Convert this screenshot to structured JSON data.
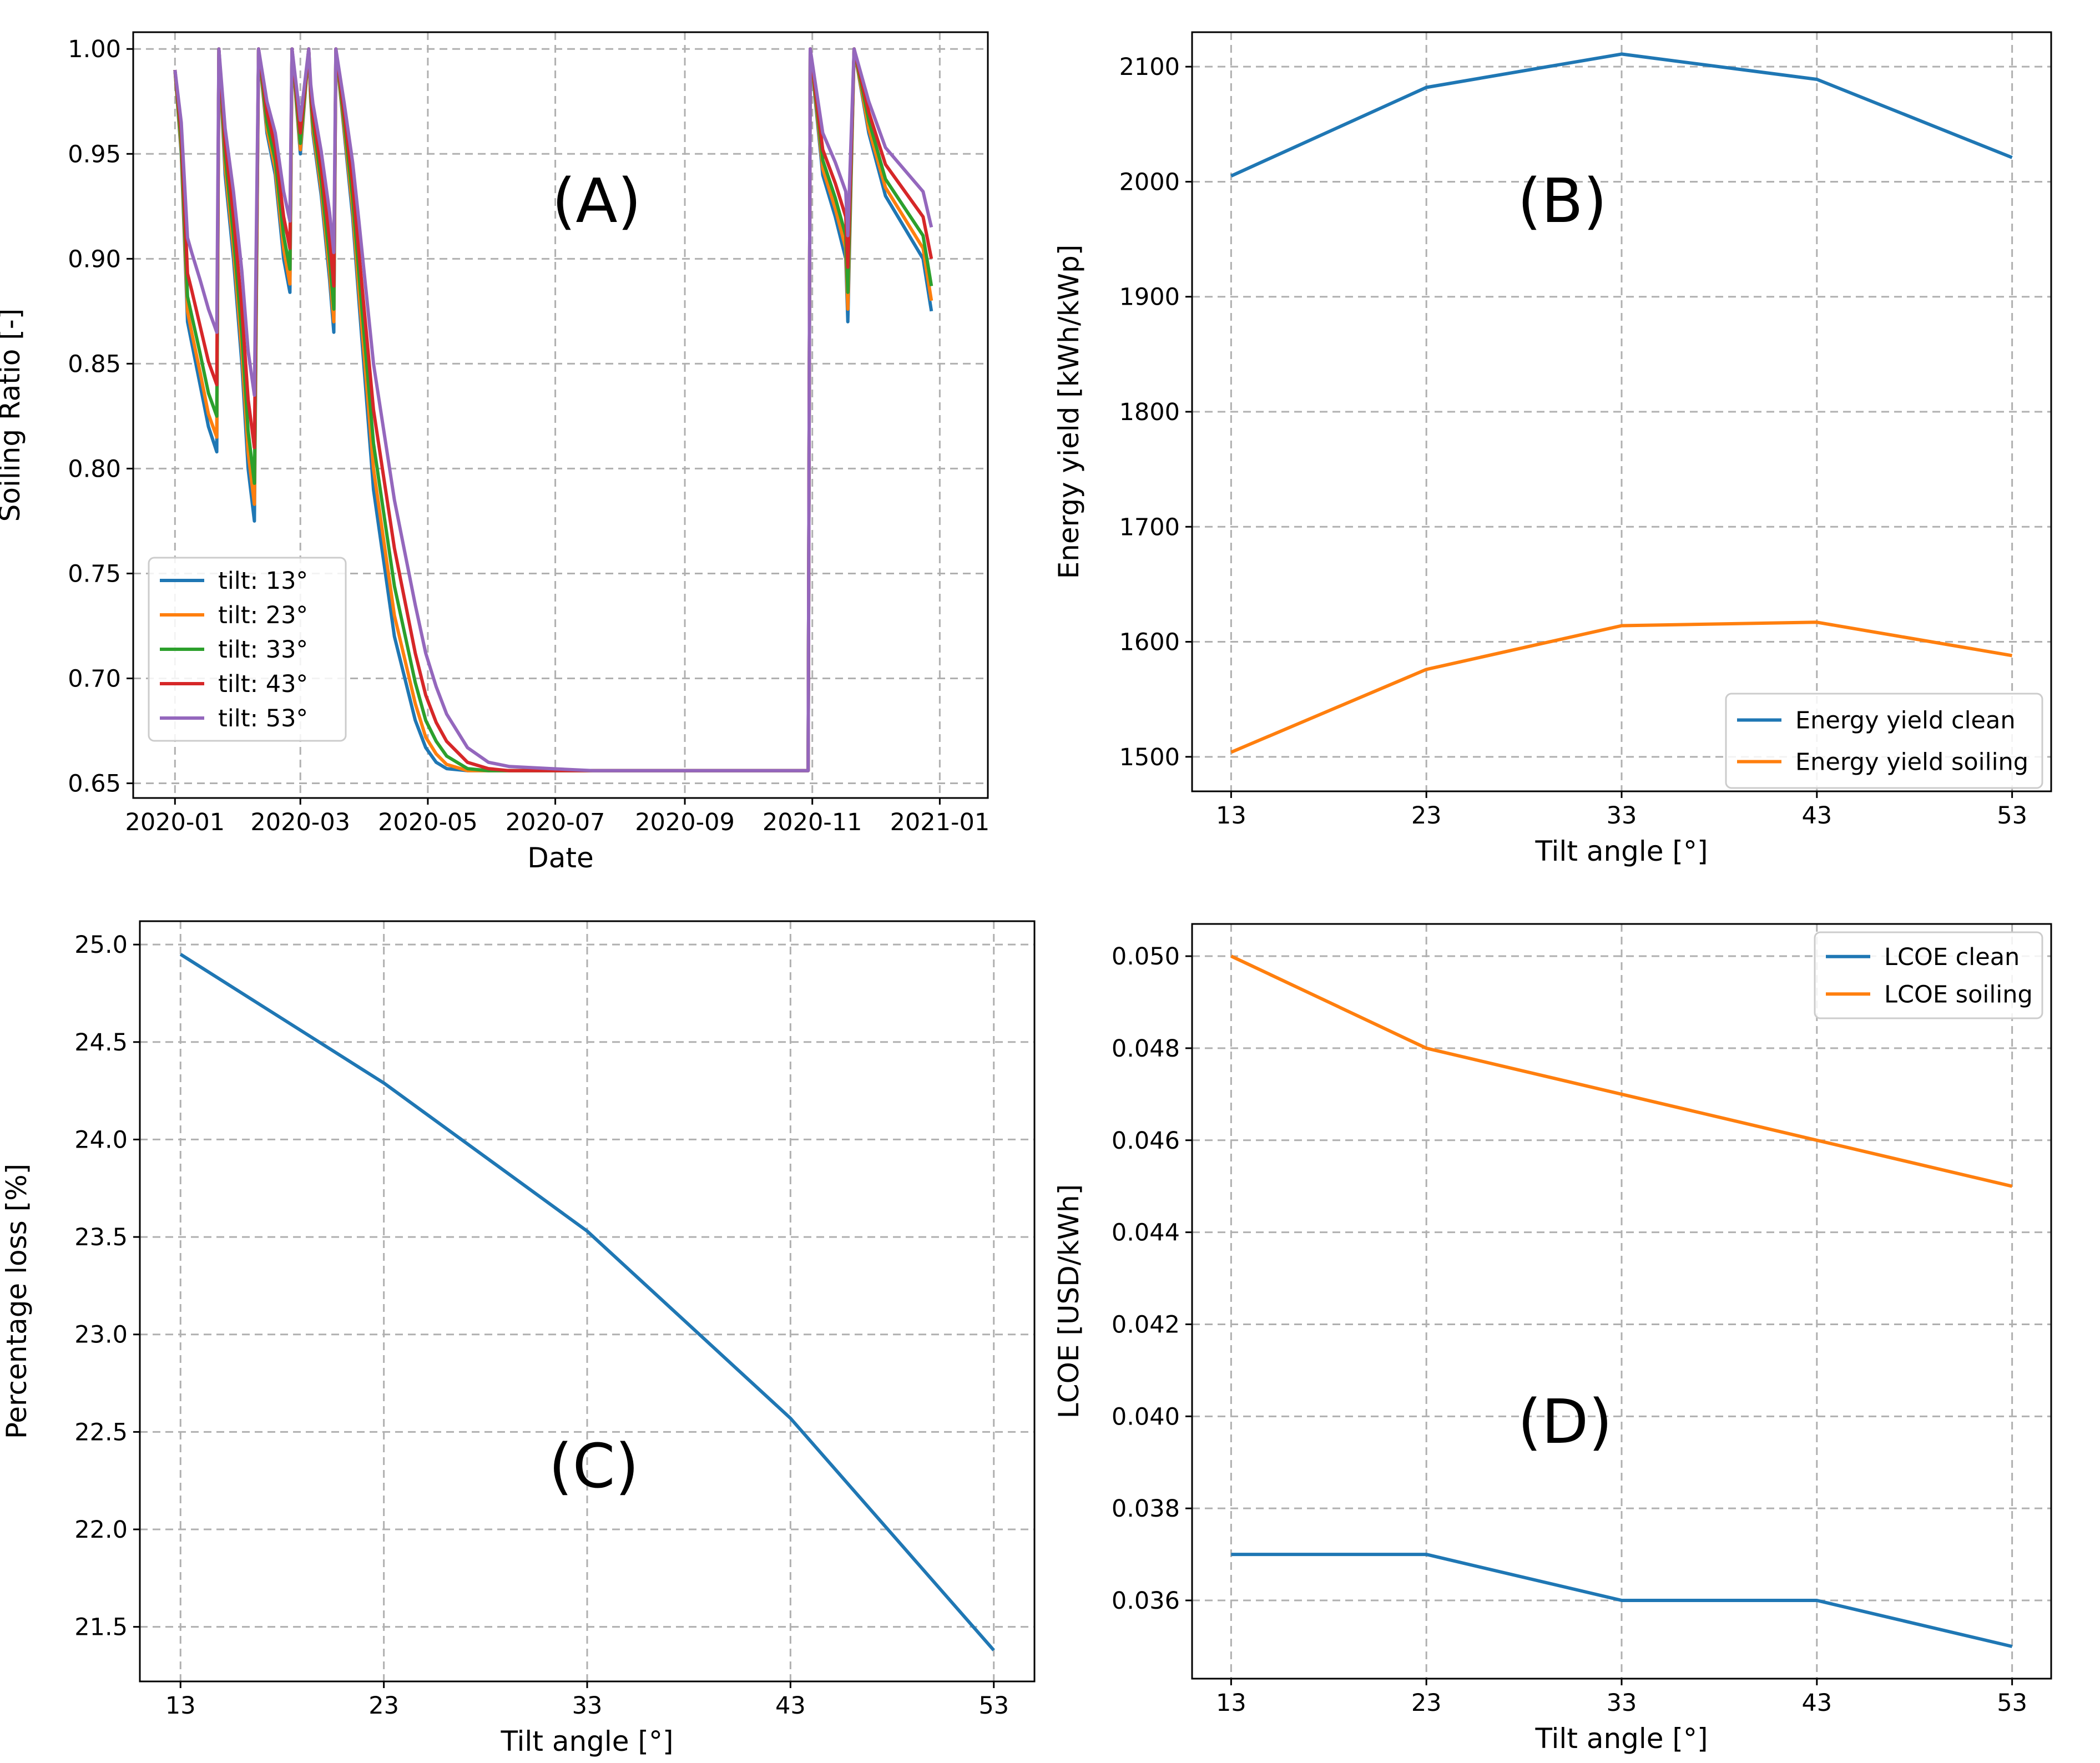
{
  "chart_data": [
    {
      "id": "A",
      "type": "line",
      "panel_label": "(A)",
      "xlabel": "Date",
      "ylabel": "Soiling Ratio [-]",
      "xlim": [
        -20,
        389
      ],
      "ylim": [
        0.643,
        1.008
      ],
      "x_ticks": [
        {
          "value": 0,
          "label": "2020-01"
        },
        {
          "value": 60,
          "label": "2020-03"
        },
        {
          "value": 121,
          "label": "2020-05"
        },
        {
          "value": 182,
          "label": "2020-07"
        },
        {
          "value": 244,
          "label": "2020-09"
        },
        {
          "value": 305,
          "label": "2020-11"
        },
        {
          "value": 366,
          "label": "2021-01"
        }
      ],
      "y_ticks": [
        {
          "value": 0.65,
          "label": "0.65"
        },
        {
          "value": 0.7,
          "label": "0.70"
        },
        {
          "value": 0.75,
          "label": "0.75"
        },
        {
          "value": 0.8,
          "label": "0.80"
        },
        {
          "value": 0.85,
          "label": "0.85"
        },
        {
          "value": 0.9,
          "label": "0.90"
        },
        {
          "value": 0.95,
          "label": "0.95"
        },
        {
          "value": 1.0,
          "label": "1.00"
        }
      ],
      "legend_position": "lower-left",
      "x": [
        0,
        3,
        6,
        8,
        12,
        16,
        20,
        21,
        24,
        28,
        32,
        35,
        38,
        40,
        44,
        48,
        52,
        55,
        56,
        60,
        64,
        65,
        66,
        70,
        74,
        76,
        77,
        81,
        85,
        88,
        95,
        105,
        115,
        120,
        125,
        130,
        140,
        150,
        160,
        180,
        200,
        250,
        303,
        304,
        307,
        310,
        316,
        321,
        322,
        325,
        332,
        340,
        358,
        362
      ],
      "series": [
        {
          "name": "tilt: 13°",
          "color": "#1f77b4",
          "values": [
            0.99,
            0.95,
            0.87,
            0.86,
            0.84,
            0.82,
            0.808,
            1.0,
            0.94,
            0.9,
            0.85,
            0.8,
            0.775,
            1.0,
            0.96,
            0.94,
            0.9,
            0.884,
            1.0,
            0.95,
            1.0,
            0.975,
            0.96,
            0.93,
            0.89,
            0.865,
            1.0,
            0.96,
            0.92,
            0.88,
            0.79,
            0.72,
            0.68,
            0.667,
            0.66,
            0.657,
            0.656,
            0.656,
            0.656,
            0.656,
            0.656,
            0.656,
            0.656,
            1.0,
            0.97,
            0.94,
            0.92,
            0.9,
            0.87,
            1.0,
            0.96,
            0.93,
            0.9,
            0.875
          ]
        },
        {
          "name": "tilt: 23°",
          "color": "#ff7f0e",
          "values": [
            0.99,
            0.952,
            0.875,
            0.865,
            0.846,
            0.826,
            0.815,
            1.0,
            0.944,
            0.905,
            0.856,
            0.808,
            0.783,
            1.0,
            0.962,
            0.943,
            0.905,
            0.888,
            1.0,
            0.952,
            1.0,
            0.976,
            0.962,
            0.933,
            0.894,
            0.87,
            1.0,
            0.962,
            0.924,
            0.885,
            0.8,
            0.73,
            0.688,
            0.672,
            0.664,
            0.659,
            0.656,
            0.656,
            0.656,
            0.656,
            0.656,
            0.656,
            0.656,
            1.0,
            0.972,
            0.943,
            0.924,
            0.905,
            0.876,
            1.0,
            0.962,
            0.934,
            0.905,
            0.88
          ]
        },
        {
          "name": "tilt: 33°",
          "color": "#2ca02c",
          "values": [
            0.99,
            0.955,
            0.882,
            0.873,
            0.855,
            0.836,
            0.825,
            1.0,
            0.949,
            0.911,
            0.864,
            0.818,
            0.793,
            1.0,
            0.965,
            0.947,
            0.911,
            0.895,
            1.0,
            0.955,
            1.0,
            0.978,
            0.965,
            0.937,
            0.9,
            0.876,
            1.0,
            0.965,
            0.929,
            0.893,
            0.812,
            0.744,
            0.698,
            0.68,
            0.67,
            0.663,
            0.657,
            0.656,
            0.656,
            0.656,
            0.656,
            0.656,
            0.656,
            1.0,
            0.974,
            0.947,
            0.929,
            0.911,
            0.884,
            1.0,
            0.966,
            0.938,
            0.911,
            0.887
          ]
        },
        {
          "name": "tilt: 43°",
          "color": "#d62728",
          "values": [
            0.99,
            0.96,
            0.893,
            0.885,
            0.868,
            0.851,
            0.84,
            1.0,
            0.955,
            0.92,
            0.876,
            0.833,
            0.81,
            1.0,
            0.97,
            0.953,
            0.92,
            0.905,
            1.0,
            0.96,
            1.0,
            0.98,
            0.969,
            0.943,
            0.909,
            0.887,
            1.0,
            0.969,
            0.936,
            0.903,
            0.828,
            0.762,
            0.712,
            0.692,
            0.679,
            0.67,
            0.66,
            0.657,
            0.656,
            0.656,
            0.656,
            0.656,
            0.656,
            1.0,
            0.976,
            0.952,
            0.936,
            0.92,
            0.896,
            1.0,
            0.97,
            0.945,
            0.92,
            0.9
          ]
        },
        {
          "name": "tilt: 53°",
          "color": "#9467bd",
          "values": [
            0.99,
            0.965,
            0.91,
            0.903,
            0.89,
            0.876,
            0.865,
            1.0,
            0.962,
            0.932,
            0.894,
            0.856,
            0.835,
            1.0,
            0.975,
            0.96,
            0.932,
            0.918,
            1.0,
            0.966,
            1.0,
            0.983,
            0.974,
            0.951,
            0.922,
            0.903,
            1.0,
            0.974,
            0.946,
            0.918,
            0.85,
            0.785,
            0.735,
            0.712,
            0.696,
            0.683,
            0.667,
            0.66,
            0.658,
            0.657,
            0.656,
            0.656,
            0.656,
            1.0,
            0.98,
            0.96,
            0.946,
            0.932,
            0.911,
            1.0,
            0.975,
            0.953,
            0.932,
            0.915
          ]
        }
      ]
    },
    {
      "id": "B",
      "type": "line",
      "panel_label": "(B)",
      "xlabel": "Tilt angle [°]",
      "ylabel": "Energy yield [kWh/kWp]",
      "xlim": [
        11,
        55
      ],
      "ylim": [
        1470,
        2130
      ],
      "x_ticks": [
        {
          "value": 13,
          "label": "13"
        },
        {
          "value": 23,
          "label": "23"
        },
        {
          "value": 33,
          "label": "33"
        },
        {
          "value": 43,
          "label": "43"
        },
        {
          "value": 53,
          "label": "53"
        }
      ],
      "y_ticks": [
        {
          "value": 1500,
          "label": "1500"
        },
        {
          "value": 1600,
          "label": "1600"
        },
        {
          "value": 1700,
          "label": "1700"
        },
        {
          "value": 1800,
          "label": "1800"
        },
        {
          "value": 1900,
          "label": "1900"
        },
        {
          "value": 2000,
          "label": "2000"
        },
        {
          "value": 2100,
          "label": "2100"
        }
      ],
      "legend_position": "lower-right",
      "x": [
        13,
        23,
        33,
        43,
        53
      ],
      "series": [
        {
          "name": "Energy yield clean",
          "color": "#1f77b4",
          "values": [
            2005,
            2082,
            2111,
            2089,
            2021
          ]
        },
        {
          "name": "Energy yield soiling",
          "color": "#ff7f0e",
          "values": [
            1504,
            1576,
            1614,
            1617,
            1588
          ]
        }
      ]
    },
    {
      "id": "C",
      "type": "line",
      "panel_label": "(C)",
      "xlabel": "Tilt angle [°]",
      "ylabel": "Percentage loss [%]",
      "xlim": [
        11,
        55
      ],
      "ylim": [
        21.22,
        25.12
      ],
      "x_ticks": [
        {
          "value": 13,
          "label": "13"
        },
        {
          "value": 23,
          "label": "23"
        },
        {
          "value": 33,
          "label": "33"
        },
        {
          "value": 43,
          "label": "43"
        },
        {
          "value": 53,
          "label": "53"
        }
      ],
      "y_ticks": [
        {
          "value": 21.5,
          "label": "21.5"
        },
        {
          "value": 22.0,
          "label": "22.0"
        },
        {
          "value": 22.5,
          "label": "22.5"
        },
        {
          "value": 23.0,
          "label": "23.0"
        },
        {
          "value": 23.5,
          "label": "23.5"
        },
        {
          "value": 24.0,
          "label": "24.0"
        },
        {
          "value": 24.5,
          "label": "24.5"
        },
        {
          "value": 25.0,
          "label": "25.0"
        }
      ],
      "legend_position": "none",
      "x": [
        13,
        23,
        33,
        43,
        53
      ],
      "series": [
        {
          "name": "Percentage loss",
          "color": "#1f77b4",
          "values": [
            24.95,
            24.29,
            23.53,
            22.57,
            21.38
          ]
        }
      ]
    },
    {
      "id": "D",
      "type": "line",
      "panel_label": "(D)",
      "xlabel": "Tilt angle [°]",
      "ylabel": "LCOE [USD/kWh]",
      "xlim": [
        11,
        55
      ],
      "ylim": [
        0.0343,
        0.0507
      ],
      "x_ticks": [
        {
          "value": 13,
          "label": "13"
        },
        {
          "value": 23,
          "label": "23"
        },
        {
          "value": 33,
          "label": "33"
        },
        {
          "value": 43,
          "label": "43"
        },
        {
          "value": 53,
          "label": "53"
        }
      ],
      "y_ticks": [
        {
          "value": 0.036,
          "label": "0.036"
        },
        {
          "value": 0.038,
          "label": "0.038"
        },
        {
          "value": 0.04,
          "label": "0.040"
        },
        {
          "value": 0.042,
          "label": "0.042"
        },
        {
          "value": 0.044,
          "label": "0.044"
        },
        {
          "value": 0.046,
          "label": "0.046"
        },
        {
          "value": 0.048,
          "label": "0.048"
        },
        {
          "value": 0.05,
          "label": "0.050"
        }
      ],
      "legend_position": "upper-right",
      "x": [
        13,
        23,
        33,
        43,
        53
      ],
      "series": [
        {
          "name": "LCOE clean",
          "color": "#1f77b4",
          "values": [
            0.037,
            0.037,
            0.036,
            0.036,
            0.035
          ]
        },
        {
          "name": "LCOE soiling",
          "color": "#ff7f0e",
          "values": [
            0.05,
            0.048,
            0.047,
            0.046,
            0.045
          ]
        }
      ]
    }
  ]
}
